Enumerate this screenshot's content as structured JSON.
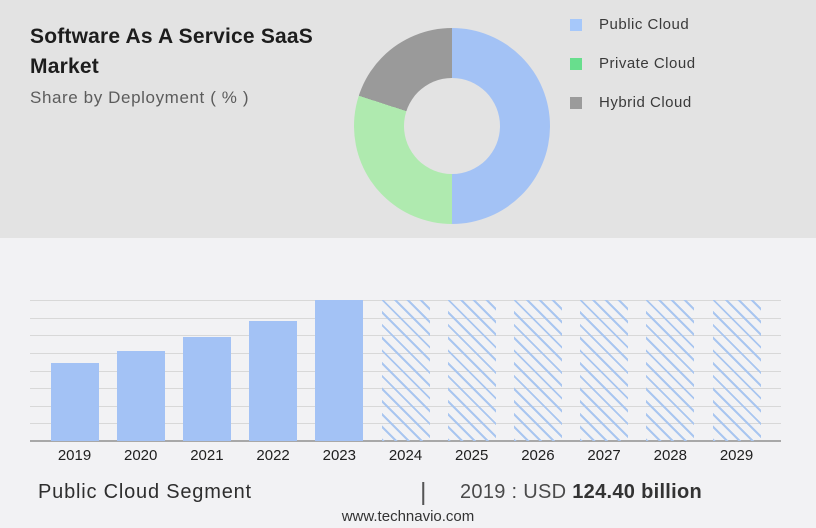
{
  "header": {
    "title": "Software As A Service SaaS Market",
    "subtitle": "Share by Deployment ( % )"
  },
  "legend": {
    "items": [
      {
        "label": "Public Cloud",
        "color": "#A6C8FA"
      },
      {
        "label": "Private Cloud",
        "color": "#68DE8D"
      },
      {
        "label": "Hybrid Cloud",
        "color": "#9B9B9B"
      }
    ]
  },
  "chart_data": [
    {
      "type": "pie",
      "title": "Share by Deployment ( % )",
      "labels": [
        "Public Cloud",
        "Private Cloud",
        "Hybrid Cloud"
      ],
      "values": [
        50,
        30,
        20
      ],
      "colors": [
        "#A3C2F5",
        "#AFEAAF",
        "#9A9A9A"
      ],
      "donut": true,
      "start": "top",
      "direction": "clockwise",
      "legend_position": "right"
    },
    {
      "type": "bar",
      "categories": [
        "2019",
        "2020",
        "2021",
        "2022",
        "2023",
        "2024",
        "2025",
        "2026",
        "2027",
        "2028",
        "2029"
      ],
      "values_pct_of_max": [
        55.5,
        63.8,
        73.8,
        85.1,
        100,
        100,
        100,
        100,
        100,
        100,
        100
      ],
      "bar_style": [
        "solid",
        "solid",
        "solid",
        "solid",
        "solid",
        "hatched",
        "hatched",
        "hatched",
        "hatched",
        "hatched",
        "hatched"
      ],
      "bar_color": "#A3C2F5",
      "hatch_color": "#A9C6F0",
      "gridlines": 9,
      "grid_on": true,
      "xlabel": "",
      "ylabel": ""
    }
  ],
  "footer": {
    "segment_label": "Public Cloud Segment",
    "separator": "|",
    "value_prefix": "2019 : USD",
    "value_bold": "124.40 billion",
    "website": "www.technavio.com"
  }
}
